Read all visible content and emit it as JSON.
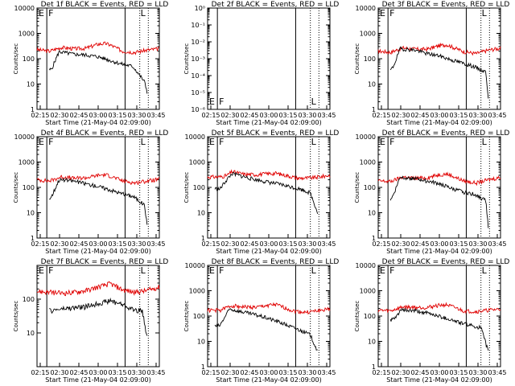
{
  "colors": {
    "events": "#000000",
    "lld": "#e00000",
    "axis": "#000000"
  },
  "chart_data": [
    {
      "id": "det1f",
      "type": "line",
      "title": "Det 1f BLACK = Events, RED = LLD",
      "scale": "log",
      "ylim": [
        1,
        10000
      ],
      "yticks": [
        "1",
        "10",
        "100",
        "1000",
        "10000"
      ],
      "ylabel": "Counts/sec",
      "xlabel": "Start Time (21-May-04 02:09:00)",
      "xticks": [
        "02:15",
        "02:30",
        "02:45",
        "03:00",
        "03:15",
        "03:30",
        "03:45"
      ],
      "markers": {
        "E": "E",
        "F": "F",
        "L": "L"
      },
      "events": [
        [
          0.5,
          35
        ],
        [
          0.6,
          40
        ],
        [
          0.9,
          190
        ],
        [
          1.5,
          150
        ],
        [
          2.0,
          140
        ],
        [
          2.5,
          120
        ],
        [
          3.0,
          85
        ],
        [
          3.5,
          60
        ],
        [
          3.9,
          50
        ],
        [
          4.0,
          40
        ],
        [
          4.4,
          12
        ],
        [
          4.5,
          5
        ]
      ],
      "lld": [
        [
          0,
          230
        ],
        [
          0.5,
          200
        ],
        [
          1,
          280
        ],
        [
          1.5,
          250
        ],
        [
          2,
          260
        ],
        [
          2.5,
          380
        ],
        [
          2.8,
          400
        ],
        [
          3.0,
          350
        ],
        [
          3.5,
          200
        ],
        [
          4.0,
          180
        ],
        [
          4.5,
          220
        ],
        [
          5,
          250
        ]
      ]
    },
    {
      "id": "det2f",
      "type": "line",
      "title": "Det 2f BLACK = Events, RED = LLD",
      "scale": "log",
      "ylim": [
        1e-06,
        1
      ],
      "yticks": [
        "10⁻⁶",
        "10⁻⁵",
        "10⁻⁴",
        "10⁻³",
        "10⁻²",
        "10⁻¹",
        "10⁰"
      ],
      "ylabel": "Counts/sec",
      "xlabel": "Start Time (21-May-04 02:09:00)",
      "xticks": [
        "02:15",
        "02:30",
        "02:45",
        "03:00",
        "03:15",
        "03:30",
        "03:45"
      ],
      "markers": {
        "E": "E",
        "F": "F",
        "L": "L"
      },
      "events": [],
      "lld": []
    },
    {
      "id": "det3f",
      "type": "line",
      "title": "Det 3f BLACK = Events, RED = LLD",
      "scale": "log",
      "ylim": [
        1,
        10000
      ],
      "yticks": [
        "1",
        "10",
        "100",
        "1000",
        "10000"
      ],
      "ylabel": "Counts/sec",
      "xlabel": "Start Time (21-May-04 02:09:00)",
      "xticks": [
        "02:15",
        "02:30",
        "02:45",
        "03:00",
        "03:15",
        "03:30",
        "03:45"
      ],
      "markers": {
        "E": "E",
        "F": "F",
        "L": "L"
      },
      "events": [
        [
          0.5,
          35
        ],
        [
          0.6,
          45
        ],
        [
          0.9,
          250
        ],
        [
          1.5,
          220
        ],
        [
          2.0,
          160
        ],
        [
          2.5,
          130
        ],
        [
          3.0,
          90
        ],
        [
          3.5,
          65
        ],
        [
          3.9,
          50
        ],
        [
          4.0,
          45
        ],
        [
          4.4,
          30
        ],
        [
          4.5,
          3
        ]
      ],
      "lld": [
        [
          0,
          200
        ],
        [
          0.5,
          180
        ],
        [
          1,
          270
        ],
        [
          1.5,
          240
        ],
        [
          2,
          240
        ],
        [
          2.5,
          330
        ],
        [
          2.8,
          360
        ],
        [
          3.0,
          300
        ],
        [
          3.5,
          190
        ],
        [
          4.0,
          160
        ],
        [
          4.5,
          220
        ],
        [
          5,
          260
        ]
      ]
    },
    {
      "id": "det4f",
      "type": "line",
      "title": "Det 4f BLACK = Events, RED = LLD",
      "scale": "log",
      "ylim": [
        1,
        10000
      ],
      "yticks": [
        "1",
        "10",
        "100",
        "1000",
        "10000"
      ],
      "ylabel": "Counts/sec",
      "xlabel": "Start Time (21-May-04 02:09:00)",
      "xticks": [
        "02:15",
        "02:30",
        "02:45",
        "03:00",
        "03:15",
        "03:30",
        "03:45"
      ],
      "markers": {
        "E": "E",
        "F": "F",
        "L": "L"
      },
      "events": [
        [
          0.5,
          35
        ],
        [
          0.6,
          45
        ],
        [
          0.9,
          200
        ],
        [
          1.5,
          180
        ],
        [
          2.0,
          140
        ],
        [
          2.5,
          110
        ],
        [
          3.0,
          80
        ],
        [
          3.5,
          55
        ],
        [
          3.9,
          45
        ],
        [
          4.0,
          40
        ],
        [
          4.4,
          20
        ],
        [
          4.5,
          3
        ]
      ],
      "lld": [
        [
          0,
          200
        ],
        [
          0.5,
          180
        ],
        [
          1,
          260
        ],
        [
          1.5,
          230
        ],
        [
          2,
          240
        ],
        [
          2.5,
          300
        ],
        [
          2.8,
          320
        ],
        [
          3.0,
          280
        ],
        [
          3.5,
          180
        ],
        [
          4.0,
          150
        ],
        [
          4.5,
          180
        ],
        [
          5,
          210
        ]
      ]
    },
    {
      "id": "det5f",
      "type": "line",
      "title": "Det 5f BLACK = Events, RED = LLD",
      "scale": "log",
      "ylim": [
        1,
        10000
      ],
      "yticks": [
        "1",
        "10",
        "100",
        "1000",
        "10000"
      ],
      "ylabel": "Counts/sec",
      "xlabel": "Start Time (21-May-04 02:09:00)",
      "xticks": [
        "02:15",
        "02:30",
        "02:45",
        "03:00",
        "03:15",
        "03:30",
        "03:45"
      ],
      "markers": {
        "E": "E",
        "F": "F",
        "L": "L"
      },
      "events": [
        [
          0.3,
          90
        ],
        [
          0.5,
          85
        ],
        [
          0.7,
          160
        ],
        [
          1.0,
          350
        ],
        [
          1.5,
          260
        ],
        [
          2.0,
          200
        ],
        [
          2.5,
          160
        ],
        [
          3.0,
          130
        ],
        [
          3.5,
          100
        ],
        [
          3.9,
          80
        ],
        [
          4.2,
          60
        ],
        [
          4.5,
          10
        ]
      ],
      "lld": [
        [
          0,
          260
        ],
        [
          0.5,
          260
        ],
        [
          0.8,
          300
        ],
        [
          1.0,
          420
        ],
        [
          1.5,
          330
        ],
        [
          2.0,
          320
        ],
        [
          2.5,
          350
        ],
        [
          2.8,
          360
        ],
        [
          3.2,
          300
        ],
        [
          3.7,
          230
        ],
        [
          4.3,
          240
        ],
        [
          5,
          300
        ]
      ]
    },
    {
      "id": "det6f",
      "type": "line",
      "title": "Det 6f BLACK = Events, RED = LLD",
      "scale": "log",
      "ylim": [
        1,
        10000
      ],
      "yticks": [
        "1",
        "10",
        "100",
        "1000",
        "10000"
      ],
      "ylabel": "Counts/sec",
      "xlabel": "Start Time (21-May-04 02:09:00)",
      "xticks": [
        "02:15",
        "02:30",
        "02:45",
        "03:00",
        "03:15",
        "03:30",
        "03:45"
      ],
      "markers": {
        "E": "E",
        "F": "F",
        "L": "L"
      },
      "events": [
        [
          0.5,
          35
        ],
        [
          0.6,
          45
        ],
        [
          0.9,
          260
        ],
        [
          1.5,
          220
        ],
        [
          2.0,
          180
        ],
        [
          2.5,
          140
        ],
        [
          3.0,
          90
        ],
        [
          3.5,
          65
        ],
        [
          3.9,
          55
        ],
        [
          4.0,
          50
        ],
        [
          4.4,
          30
        ],
        [
          4.5,
          3
        ]
      ],
      "lld": [
        [
          0,
          180
        ],
        [
          0.5,
          170
        ],
        [
          1,
          260
        ],
        [
          1.5,
          230
        ],
        [
          2,
          240
        ],
        [
          2.5,
          320
        ],
        [
          2.8,
          340
        ],
        [
          3.0,
          290
        ],
        [
          3.5,
          180
        ],
        [
          4.0,
          150
        ],
        [
          4.5,
          200
        ],
        [
          5,
          250
        ]
      ]
    },
    {
      "id": "det7f",
      "type": "line",
      "title": "Det 7f BLACK = Events, RED = LLD",
      "scale": "log",
      "ylim": [
        1,
        1000
      ],
      "yticks": [
        "10",
        "100"
      ],
      "ylabel": "Counts/sec",
      "xlabel": "Start Time (21-May-04 02:09:00)",
      "xticks": [
        "02:15",
        "02:30",
        "02:45",
        "03:00",
        "03:15",
        "03:30",
        "03:45"
      ],
      "markers": {
        "E": "E",
        "F": "F",
        "L": "L"
      },
      "events": [
        [
          0.5,
          45
        ],
        [
          0.9,
          50
        ],
        [
          1.5,
          55
        ],
        [
          2.0,
          60
        ],
        [
          2.5,
          75
        ],
        [
          3.0,
          90
        ],
        [
          3.5,
          70
        ],
        [
          3.9,
          50
        ],
        [
          4.3,
          45
        ],
        [
          4.5,
          8
        ]
      ],
      "lld": [
        [
          0,
          170
        ],
        [
          0.5,
          160
        ],
        [
          1,
          150
        ],
        [
          1.5,
          160
        ],
        [
          2,
          180
        ],
        [
          2.5,
          230
        ],
        [
          3.0,
          290
        ],
        [
          3.5,
          190
        ],
        [
          4.0,
          160
        ],
        [
          4.5,
          180
        ],
        [
          5,
          230
        ]
      ]
    },
    {
      "id": "det8f",
      "type": "line",
      "title": "Det 8f BLACK = Events, RED = LLD",
      "scale": "log",
      "ylim": [
        1,
        10000
      ],
      "yticks": [
        "1",
        "10",
        "100",
        "1000",
        "10000"
      ],
      "ylabel": "Counts/sec",
      "xlabel": "Start Time (21-May-04 02:09:00)",
      "xticks": [
        "02:15",
        "02:30",
        "02:45",
        "03:00",
        "03:15",
        "03:30",
        "03:45"
      ],
      "markers": {
        "E": "E",
        "F": "F",
        "L": "L"
      },
      "events": [
        [
          0.3,
          40
        ],
        [
          0.5,
          42
        ],
        [
          0.9,
          190
        ],
        [
          1.5,
          140
        ],
        [
          2.0,
          110
        ],
        [
          2.5,
          80
        ],
        [
          3.0,
          55
        ],
        [
          3.5,
          35
        ],
        [
          3.9,
          25
        ],
        [
          4.2,
          18
        ],
        [
          4.5,
          4
        ]
      ],
      "lld": [
        [
          0,
          170
        ],
        [
          0.5,
          170
        ],
        [
          1,
          260
        ],
        [
          1.5,
          230
        ],
        [
          2,
          220
        ],
        [
          2.5,
          270
        ],
        [
          2.8,
          280
        ],
        [
          3.0,
          240
        ],
        [
          3.5,
          160
        ],
        [
          4.0,
          140
        ],
        [
          4.5,
          160
        ],
        [
          5,
          190
        ]
      ]
    },
    {
      "id": "det9f",
      "type": "line",
      "title": "Det 9f BLACK = Events, RED = LLD",
      "scale": "log",
      "ylim": [
        1,
        10000
      ],
      "yticks": [
        "1",
        "10",
        "100",
        "1000",
        "10000"
      ],
      "ylabel": "Counts/sec",
      "xlabel": "Start Time (21-May-04 02:09:00)",
      "xticks": [
        "02:15",
        "02:30",
        "02:45",
        "03:00",
        "03:15",
        "03:30",
        "03:45"
      ],
      "markers": {
        "E": "E",
        "F": "F",
        "L": "L"
      },
      "events": [
        [
          0.5,
          70
        ],
        [
          0.7,
          80
        ],
        [
          0.9,
          170
        ],
        [
          1.5,
          160
        ],
        [
          2.0,
          130
        ],
        [
          2.5,
          100
        ],
        [
          3.0,
          70
        ],
        [
          3.5,
          50
        ],
        [
          3.9,
          40
        ],
        [
          4.2,
          35
        ],
        [
          4.5,
          4
        ]
      ],
      "lld": [
        [
          0,
          170
        ],
        [
          0.5,
          160
        ],
        [
          1,
          230
        ],
        [
          1.5,
          220
        ],
        [
          2,
          220
        ],
        [
          2.5,
          270
        ],
        [
          2.8,
          280
        ],
        [
          3.0,
          240
        ],
        [
          3.5,
          160
        ],
        [
          4.0,
          150
        ],
        [
          4.5,
          170
        ],
        [
          5,
          190
        ]
      ]
    }
  ]
}
